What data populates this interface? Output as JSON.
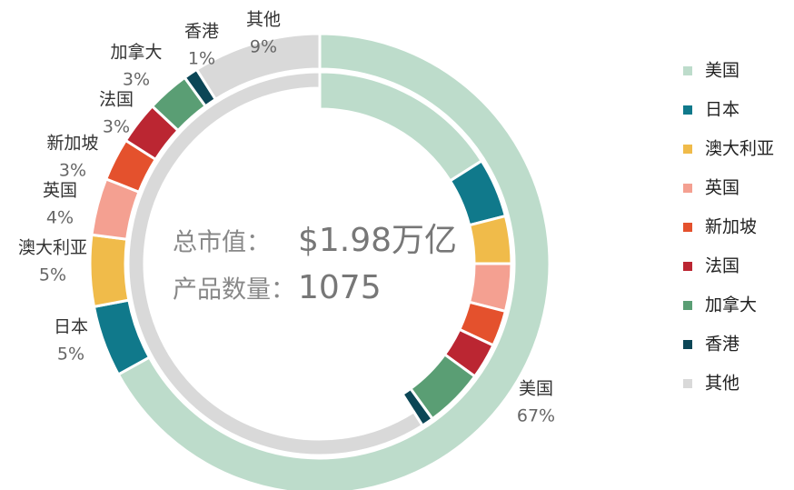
{
  "chart_data": {
    "type": "donut",
    "center_labels": [
      [
        "总市值：",
        "$1.98万亿"
      ],
      [
        "产品数量：",
        "1075"
      ]
    ],
    "categories": [
      "美国",
      "日本",
      "澳大利亚",
      "英国",
      "新加坡",
      "法国",
      "加拿大",
      "香港",
      "其他"
    ],
    "values": [
      67,
      5,
      5,
      4,
      3,
      3,
      3,
      1,
      9
    ],
    "value_labels": [
      "67%",
      "5%",
      "5%",
      "4%",
      "3%",
      "3%",
      "3%",
      "1%",
      "9%"
    ],
    "inner_values": [
      16,
      5,
      4,
      4,
      3,
      3,
      5,
      1,
      59
    ],
    "colors": [
      "#bddccb",
      "#10798b",
      "#f0bb4a",
      "#f4a091",
      "#e4512d",
      "#bb2632",
      "#5a9e74",
      "#0b4656",
      "#d9d9d9"
    ],
    "legend": "right"
  }
}
